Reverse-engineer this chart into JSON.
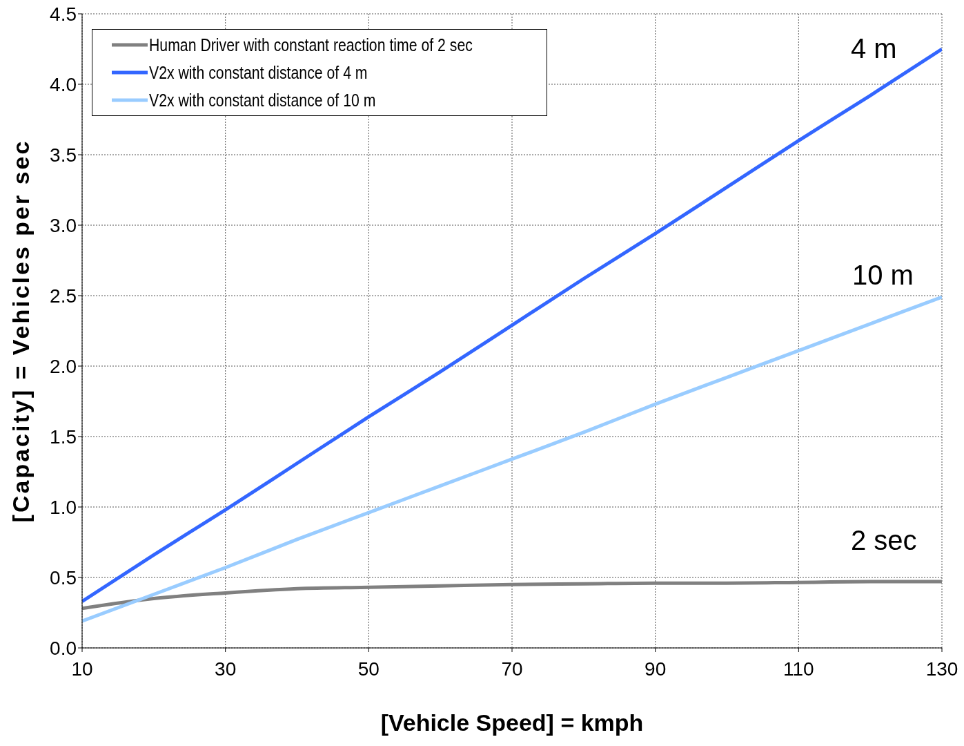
{
  "chart_data": {
    "type": "line",
    "xlabel": "[Vehicle Speed] = kmph",
    "ylabel": "[Capacity] = Vehicles per sec",
    "x": [
      10,
      20,
      30,
      40,
      50,
      60,
      70,
      80,
      90,
      100,
      110,
      120,
      130
    ],
    "series": [
      {
        "name": "Human Driver with constant reaction time of 2 sec",
        "color": "#808080",
        "values": [
          0.28,
          0.35,
          0.39,
          0.42,
          0.43,
          0.44,
          0.45,
          0.455,
          0.46,
          0.46,
          0.465,
          0.47,
          0.47
        ]
      },
      {
        "name": "V2x with constant distance of 4 m",
        "color": "#3366ff",
        "values": [
          0.33,
          0.66,
          0.98,
          1.31,
          1.64,
          1.96,
          2.29,
          2.62,
          2.94,
          3.27,
          3.6,
          3.92,
          4.25
        ]
      },
      {
        "name": "V2x with constant distance of 10 m",
        "color": "#99ccff",
        "values": [
          0.19,
          0.38,
          0.57,
          0.77,
          0.96,
          1.15,
          1.34,
          1.53,
          1.73,
          1.92,
          2.11,
          2.3,
          2.49
        ]
      }
    ],
    "xlim": [
      10,
      130
    ],
    "xticks": [
      10,
      30,
      50,
      70,
      90,
      110,
      130
    ],
    "ylim": [
      0,
      4.5
    ],
    "yticks": [
      {
        "value": 0,
        "label": "0.0"
      },
      {
        "value": 0.5,
        "label": "0.5"
      },
      {
        "value": 1,
        "label": "1.0"
      },
      {
        "value": 1.5,
        "label": "1.5"
      },
      {
        "value": 2,
        "label": "2.0"
      },
      {
        "value": 2.5,
        "label": "2.5"
      },
      {
        "value": 3,
        "label": "3.0"
      },
      {
        "value": 3.5,
        "label": "3.5"
      },
      {
        "value": 4,
        "label": "4.0"
      },
      {
        "value": 4.5,
        "label": "4.5"
      }
    ],
    "annotations": [
      "4 m",
      "10 m",
      "2 sec"
    ],
    "grid": true,
    "legend": "top left",
    "marker": "none",
    "line_style": "solid"
  }
}
